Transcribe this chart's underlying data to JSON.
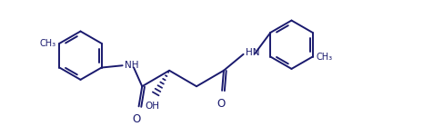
{
  "bg_color": "#ffffff",
  "line_color": "#1a1a6e",
  "line_width": 1.4,
  "font_size": 7.5,
  "figsize": [
    4.65,
    1.5
  ],
  "dpi": 100,
  "xlim": [
    0,
    9.3
  ],
  "ylim": [
    -0.2,
    3.0
  ]
}
